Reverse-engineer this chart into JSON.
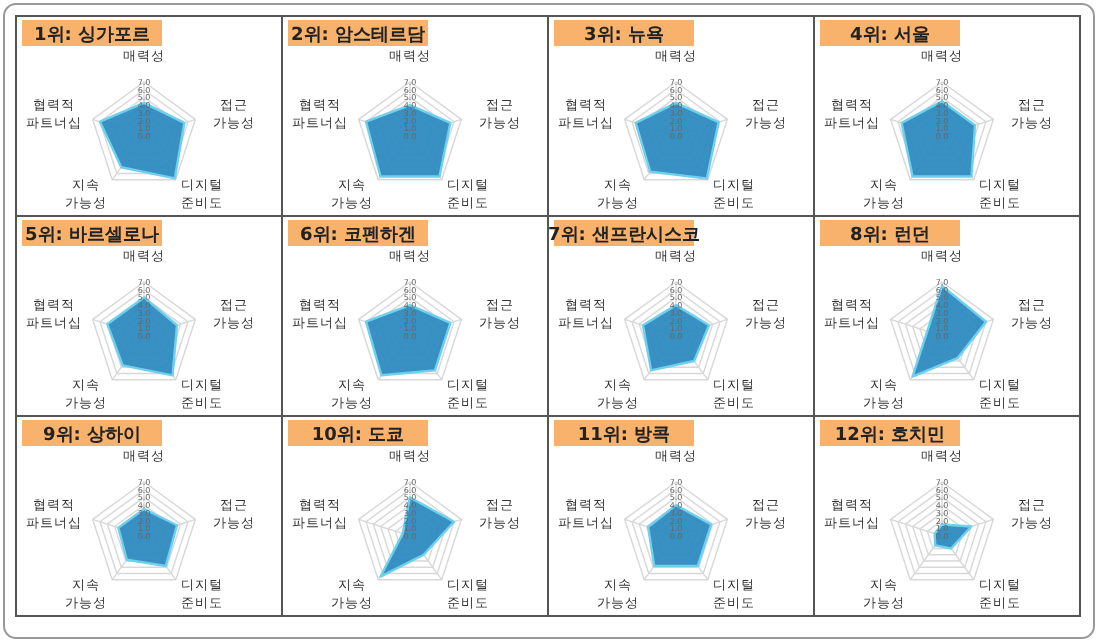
{
  "chart_data": [
    {
      "type": "radar",
      "title": "1위: 싱가포르",
      "categories": [
        "매력성",
        "접근 가능성",
        "디지털 준비도",
        "지속 가능성",
        "협력적 파트너십"
      ],
      "ylim": [
        0,
        7
      ],
      "yticks": [
        {
          "value": 0,
          "label": "0.0"
        },
        {
          "value": 1,
          "label": "1.0"
        },
        {
          "value": 2,
          "label": "2.0"
        },
        {
          "value": 3,
          "label": "3.0"
        },
        {
          "value": 4,
          "label": "4.0"
        },
        {
          "value": 5,
          "label": "5.0"
        },
        {
          "value": 6,
          "label": "6.0"
        },
        {
          "value": 7,
          "label": "7.0"
        }
      ],
      "series": [
        {
          "color": "#2e8bc0",
          "values": [
            4.3,
            5.5,
            6.8,
            5.0,
            6.0
          ]
        }
      ]
    },
    {
      "type": "radar",
      "title": "2위: 암스테르담",
      "categories": [
        "매력성",
        "접근 가능성",
        "디지털 준비도",
        "지속 가능성",
        "협력적 파트너십"
      ],
      "ylim": [
        0,
        7
      ],
      "yticks": [
        {
          "value": 0,
          "label": "0.0"
        },
        {
          "value": 1,
          "label": "1.0"
        },
        {
          "value": 2,
          "label": "2.0"
        },
        {
          "value": 3,
          "label": "3.0"
        },
        {
          "value": 4,
          "label": "4.0"
        },
        {
          "value": 5,
          "label": "5.0"
        },
        {
          "value": 6,
          "label": "6.0"
        },
        {
          "value": 7,
          "label": "7.0"
        }
      ],
      "series": [
        {
          "color": "#2e8bc0",
          "values": [
            4.0,
            5.5,
            6.5,
            6.5,
            6.0
          ]
        }
      ]
    },
    {
      "type": "radar",
      "title": "3위: 뉴욕",
      "categories": [
        "매력성",
        "접근 가능성",
        "디지털 준비도",
        "지속 가능성",
        "협력적 파트너십"
      ],
      "ylim": [
        0,
        7
      ],
      "yticks": [
        {
          "value": 0,
          "label": "0.0"
        },
        {
          "value": 1,
          "label": "1.0"
        },
        {
          "value": 2,
          "label": "2.0"
        },
        {
          "value": 3,
          "label": "3.0"
        },
        {
          "value": 4,
          "label": "4.0"
        },
        {
          "value": 5,
          "label": "5.0"
        },
        {
          "value": 6,
          "label": "6.0"
        },
        {
          "value": 7,
          "label": "7.0"
        }
      ],
      "series": [
        {
          "color": "#2e8bc0",
          "values": [
            4.3,
            5.8,
            6.8,
            5.7,
            5.5
          ]
        }
      ]
    },
    {
      "type": "radar",
      "title": "4위: 서울",
      "categories": [
        "매력성",
        "접근 가능성",
        "디지털 준비도",
        "지속 가능성",
        "협력적 파트너십"
      ],
      "ylim": [
        0,
        7
      ],
      "yticks": [
        {
          "value": 0,
          "label": "0.0"
        },
        {
          "value": 1,
          "label": "1.0"
        },
        {
          "value": 2,
          "label": "2.0"
        },
        {
          "value": 3,
          "label": "3.0"
        },
        {
          "value": 4,
          "label": "4.0"
        },
        {
          "value": 5,
          "label": "5.0"
        },
        {
          "value": 6,
          "label": "6.0"
        },
        {
          "value": 7,
          "label": "7.0"
        }
      ],
      "series": [
        {
          "color": "#2e8bc0",
          "values": [
            4.5,
            4.5,
            6.5,
            6.5,
            5.5
          ]
        }
      ]
    },
    {
      "type": "radar",
      "title": "5위: 바르셀로나",
      "categories": [
        "매력성",
        "접근 가능성",
        "디지털 준비도",
        "지속 가능성",
        "협력적 파트너십"
      ],
      "ylim": [
        0,
        7
      ],
      "yticks": [
        {
          "value": 0,
          "label": "0.0"
        },
        {
          "value": 1,
          "label": "1.0"
        },
        {
          "value": 2,
          "label": "2.0"
        },
        {
          "value": 3,
          "label": "3.0"
        },
        {
          "value": 4,
          "label": "4.0"
        },
        {
          "value": 5,
          "label": "5.0"
        },
        {
          "value": 6,
          "label": "6.0"
        },
        {
          "value": 7,
          "label": "7.0"
        }
      ],
      "series": [
        {
          "color": "#2e8bc0",
          "values": [
            5.0,
            4.5,
            6.3,
            4.7,
            5.0
          ]
        }
      ]
    },
    {
      "type": "radar",
      "title": "6위: 코펜하겐",
      "categories": [
        "매력성",
        "접근 가능성",
        "디지털 준비도",
        "지속 가능성",
        "협력적 파트너십"
      ],
      "ylim": [
        0,
        7
      ],
      "yticks": [
        {
          "value": 0,
          "label": "0.0"
        },
        {
          "value": 1,
          "label": "1.0"
        },
        {
          "value": 2,
          "label": "2.0"
        },
        {
          "value": 3,
          "label": "3.0"
        },
        {
          "value": 4,
          "label": "4.0"
        },
        {
          "value": 5,
          "label": "5.0"
        },
        {
          "value": 6,
          "label": "6.0"
        },
        {
          "value": 7,
          "label": "7.0"
        }
      ],
      "series": [
        {
          "color": "#2e8bc0",
          "values": [
            4.0,
            5.5,
            5.5,
            6.3,
            6.0
          ]
        }
      ]
    },
    {
      "type": "radar",
      "title": "7위: 샌프란시스코",
      "categories": [
        "매력성",
        "접근 가능성",
        "디지털 준비도",
        "지속 가능성",
        "협력적 파트너십"
      ],
      "ylim": [
        0,
        7
      ],
      "yticks": [
        {
          "value": 0,
          "label": "0.0"
        },
        {
          "value": 1,
          "label": "1.0"
        },
        {
          "value": 2,
          "label": "2.0"
        },
        {
          "value": 3,
          "label": "3.0"
        },
        {
          "value": 4,
          "label": "4.0"
        },
        {
          "value": 5,
          "label": "5.0"
        },
        {
          "value": 6,
          "label": "6.0"
        },
        {
          "value": 7,
          "label": "7.0"
        }
      ],
      "series": [
        {
          "color": "#2e8bc0",
          "values": [
            4.0,
            4.5,
            4.0,
            5.5,
            4.5
          ]
        }
      ]
    },
    {
      "type": "radar",
      "title": "8위: 런던",
      "categories": [
        "매력성",
        "접근 가능성",
        "디지털 준비도",
        "지속 가능성",
        "협력적 파트너십"
      ],
      "ylim": [
        0,
        7
      ],
      "yticks": [
        {
          "value": 0,
          "label": "0.0"
        },
        {
          "value": 1,
          "label": "1.0"
        },
        {
          "value": 2,
          "label": "2.0"
        },
        {
          "value": 3,
          "label": "3.0"
        },
        {
          "value": 4,
          "label": "4.0"
        },
        {
          "value": 5,
          "label": "5.0"
        },
        {
          "value": 6,
          "label": "6.0"
        },
        {
          "value": 7,
          "label": "7.0"
        }
      ],
      "series": [
        {
          "color": "#2e8bc0",
          "values": [
            6.5,
            6.0,
            3.5,
            6.5,
            2.0
          ]
        }
      ]
    },
    {
      "type": "radar",
      "title": "9위: 상하이",
      "categories": [
        "매력성",
        "접근 가능성",
        "디지털 준비도",
        "지속 가능성",
        "협력적 파트너십"
      ],
      "ylim": [
        0,
        7
      ],
      "yticks": [
        {
          "value": 0,
          "label": "0.0"
        },
        {
          "value": 1,
          "label": "1.0"
        },
        {
          "value": 2,
          "label": "2.0"
        },
        {
          "value": 3,
          "label": "3.0"
        },
        {
          "value": 4,
          "label": "4.0"
        },
        {
          "value": 5,
          "label": "5.0"
        },
        {
          "value": 6,
          "label": "6.0"
        },
        {
          "value": 7,
          "label": "7.0"
        }
      ],
      "series": [
        {
          "color": "#2e8bc0",
          "values": [
            3.5,
            4.5,
            4.8,
            3.8,
            3.5
          ]
        }
      ]
    },
    {
      "type": "radar",
      "title": "10위: 도쿄",
      "categories": [
        "매력성",
        "접근 가능성",
        "디지털 준비도",
        "지속 가능성",
        "협력적 파트너십"
      ],
      "ylim": [
        0,
        7
      ],
      "yticks": [
        {
          "value": 0,
          "label": "0.0"
        },
        {
          "value": 1,
          "label": "1.0"
        },
        {
          "value": 2,
          "label": "2.0"
        },
        {
          "value": 3,
          "label": "3.0"
        },
        {
          "value": 4,
          "label": "4.0"
        },
        {
          "value": 5,
          "label": "5.0"
        },
        {
          "value": 6,
          "label": "6.0"
        },
        {
          "value": 7,
          "label": "7.0"
        }
      ],
      "series": [
        {
          "color": "#2e8bc0",
          "values": [
            5.0,
            6.0,
            3.0,
            6.5,
            1.0
          ]
        }
      ]
    },
    {
      "type": "radar",
      "title": "11위: 방콕",
      "categories": [
        "매력성",
        "접근 가능성",
        "디지털 준비도",
        "지속 가능성",
        "협력적 파트너십"
      ],
      "ylim": [
        0,
        7
      ],
      "yticks": [
        {
          "value": 0,
          "label": "0.0"
        },
        {
          "value": 1,
          "label": "1.0"
        },
        {
          "value": 2,
          "label": "2.0"
        },
        {
          "value": 3,
          "label": "3.0"
        },
        {
          "value": 4,
          "label": "4.0"
        },
        {
          "value": 5,
          "label": "5.0"
        },
        {
          "value": 6,
          "label": "6.0"
        },
        {
          "value": 7,
          "label": "7.0"
        }
      ],
      "series": [
        {
          "color": "#2e8bc0",
          "values": [
            4.0,
            4.8,
            4.8,
            4.8,
            3.8
          ]
        }
      ]
    },
    {
      "type": "radar",
      "title": "12위: 호치민",
      "categories": [
        "매력성",
        "접근 가능성",
        "디지털 준비도",
        "지속 가능성",
        "협력적 파트너십"
      ],
      "ylim": [
        0,
        7
      ],
      "yticks": [
        {
          "value": 0,
          "label": "0.0"
        },
        {
          "value": 1,
          "label": "1.0"
        },
        {
          "value": 2,
          "label": "2.0"
        },
        {
          "value": 3,
          "label": "3.0"
        },
        {
          "value": 4,
          "label": "4.0"
        },
        {
          "value": 5,
          "label": "5.0"
        },
        {
          "value": 6,
          "label": "6.0"
        },
        {
          "value": 7,
          "label": "7.0"
        }
      ],
      "series": [
        {
          "color": "#2e8bc0",
          "values": [
            1.5,
            4.0,
            2.0,
            1.5,
            1.0
          ]
        }
      ]
    }
  ]
}
